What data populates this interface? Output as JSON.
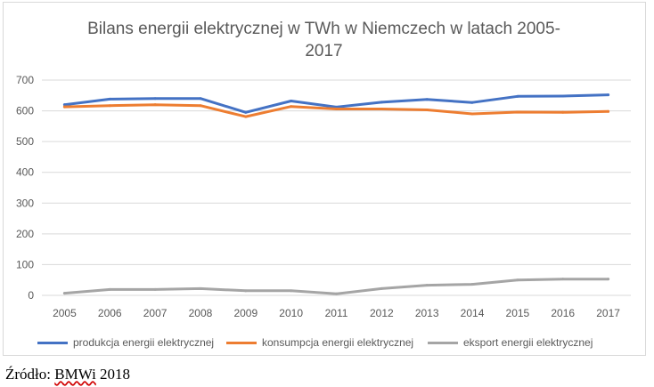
{
  "chart_data": {
    "type": "line",
    "title_line1": "Bilans energii elektrycznej w TWh w Niemczech w latach 2005-",
    "title_line2": "2017",
    "xlabel": "",
    "ylabel": "",
    "categories": [
      "2005",
      "2006",
      "2007",
      "2008",
      "2009",
      "2010",
      "2011",
      "2012",
      "2013",
      "2014",
      "2015",
      "2016",
      "2017"
    ],
    "ylim": [
      0,
      700
    ],
    "yticks": [
      0,
      100,
      200,
      300,
      400,
      500,
      600,
      700
    ],
    "grid": true,
    "legend_position": "bottom",
    "series": [
      {
        "name": "produkcja energii elektrycznej",
        "color": "#4472c4",
        "values": [
          620,
          638,
          640,
          640,
          595,
          632,
          612,
          628,
          637,
          627,
          647,
          648,
          652
        ]
      },
      {
        "name": "konsumpcja energii elektrycznej",
        "color": "#ed7d31",
        "values": [
          613,
          617,
          620,
          617,
          581,
          614,
          606,
          606,
          603,
          590,
          596,
          595,
          598
        ]
      },
      {
        "name": "eksport energii elektrycznej",
        "color": "#a5a5a5",
        "values": [
          7,
          19,
          19,
          22,
          15,
          15,
          5,
          22,
          33,
          36,
          50,
          53,
          53
        ]
      }
    ]
  },
  "source": {
    "prefix": "Źródło: ",
    "brand": "BMWi",
    "suffix": " 2018"
  }
}
